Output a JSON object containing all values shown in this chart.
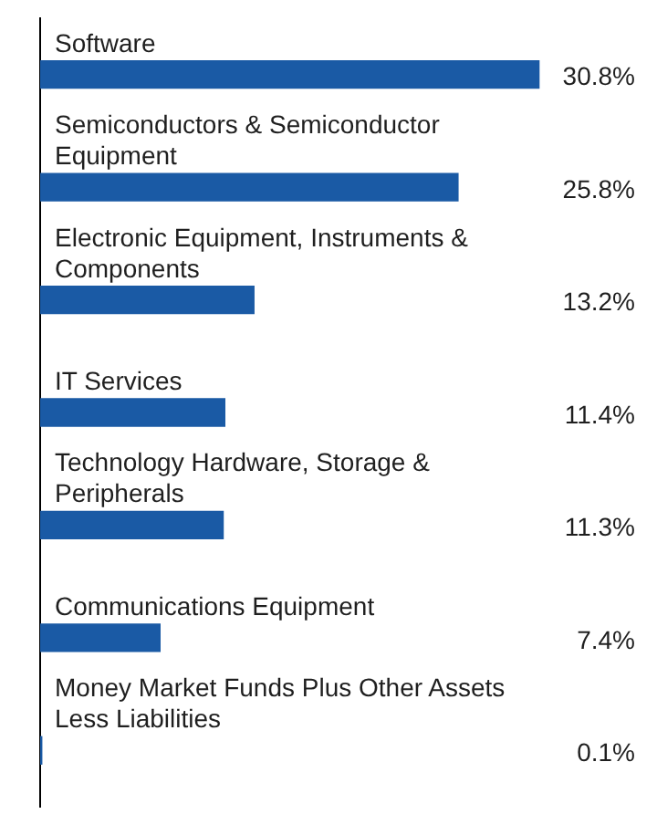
{
  "chart_data": {
    "type": "bar",
    "orientation": "horizontal",
    "categories": [
      "Software",
      "Semiconductors & Semiconductor Equipment",
      "Electronic Equipment, Instruments & Components",
      "IT Services",
      "Technology Hardware, Storage & Peripherals",
      "Communications Equipment",
      "Money Market Funds Plus Other Assets Less Liabilities"
    ],
    "values": [
      30.8,
      25.8,
      13.2,
      11.4,
      11.3,
      7.4,
      0.1
    ],
    "value_labels": [
      "30.8%",
      "25.8%",
      "13.2%",
      "11.4%",
      "11.3%",
      "7.4%",
      "0.1%"
    ],
    "color": "#1a5aa5"
  }
}
